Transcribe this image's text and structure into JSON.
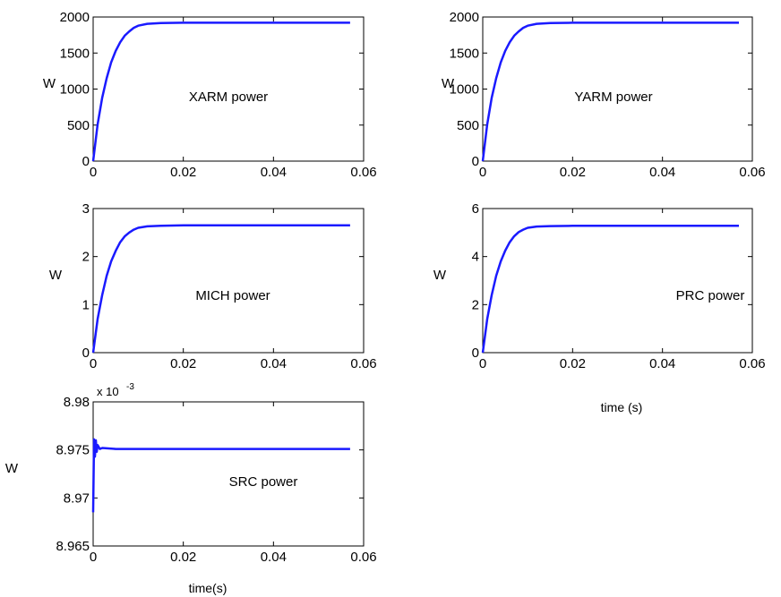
{
  "colors": {
    "series": "#1a1aff",
    "axes": "#000000",
    "background": "#ffffff"
  },
  "chart_data": [
    {
      "type": "line",
      "annotation": "XARM power",
      "ylabel": "W",
      "xlabel": "",
      "xlim": [
        0,
        0.06
      ],
      "ylim": [
        0,
        2000
      ],
      "xticks": [
        "0",
        "0.02",
        "0.04",
        "0.06"
      ],
      "yticks": [
        "0",
        "500",
        "1000",
        "1500",
        "2000"
      ],
      "exponent": "",
      "grid": false,
      "series": [
        {
          "x": [
            0,
            0.001,
            0.002,
            0.003,
            0.004,
            0.005,
            0.006,
            0.007,
            0.008,
            0.009,
            0.01,
            0.012,
            0.015,
            0.02,
            0.03,
            0.04,
            0.05,
            0.057
          ],
          "y": [
            0,
            510,
            880,
            1150,
            1370,
            1530,
            1650,
            1740,
            1800,
            1850,
            1880,
            1905,
            1915,
            1920,
            1920,
            1920,
            1920,
            1920
          ]
        }
      ]
    },
    {
      "type": "line",
      "annotation": "YARM power",
      "ylabel": "W",
      "xlabel": "",
      "xlim": [
        0,
        0.06
      ],
      "ylim": [
        0,
        2000
      ],
      "xticks": [
        "0",
        "0.02",
        "0.04",
        "0.06"
      ],
      "yticks": [
        "0",
        "500",
        "1000",
        "1500",
        "2000"
      ],
      "exponent": "",
      "grid": false,
      "series": [
        {
          "x": [
            0,
            0.001,
            0.002,
            0.003,
            0.004,
            0.005,
            0.006,
            0.007,
            0.008,
            0.009,
            0.01,
            0.012,
            0.015,
            0.02,
            0.03,
            0.04,
            0.05,
            0.057
          ],
          "y": [
            0,
            510,
            880,
            1150,
            1370,
            1530,
            1650,
            1740,
            1800,
            1850,
            1880,
            1905,
            1915,
            1920,
            1920,
            1920,
            1920,
            1920
          ]
        }
      ]
    },
    {
      "type": "line",
      "annotation": "MICH power",
      "ylabel": "W",
      "xlabel": "",
      "xlim": [
        0,
        0.06
      ],
      "ylim": [
        0,
        3
      ],
      "xticks": [
        "0",
        "0.02",
        "0.04",
        "0.06"
      ],
      "yticks": [
        "0",
        "1",
        "2",
        "3"
      ],
      "exponent": "",
      "grid": false,
      "series": [
        {
          "x": [
            0,
            0.001,
            0.002,
            0.003,
            0.004,
            0.005,
            0.006,
            0.007,
            0.008,
            0.009,
            0.01,
            0.012,
            0.015,
            0.02,
            0.03,
            0.04,
            0.05,
            0.057
          ],
          "y": [
            0,
            0.7,
            1.2,
            1.6,
            1.9,
            2.12,
            2.3,
            2.42,
            2.5,
            2.56,
            2.6,
            2.63,
            2.64,
            2.65,
            2.65,
            2.65,
            2.65,
            2.65
          ]
        }
      ]
    },
    {
      "type": "line",
      "annotation": "PRC power",
      "ylabel": "W",
      "xlabel": "time (s)",
      "xlim": [
        0,
        0.06
      ],
      "ylim": [
        0,
        6
      ],
      "xticks": [
        "0",
        "0.02",
        "0.04",
        "0.06"
      ],
      "yticks": [
        "0",
        "2",
        "4",
        "6"
      ],
      "exponent": "",
      "grid": false,
      "series": [
        {
          "x": [
            0,
            0.001,
            0.002,
            0.003,
            0.004,
            0.005,
            0.006,
            0.007,
            0.008,
            0.009,
            0.01,
            0.012,
            0.015,
            0.02,
            0.03,
            0.04,
            0.05,
            0.057
          ],
          "y": [
            0,
            1.4,
            2.4,
            3.2,
            3.8,
            4.25,
            4.6,
            4.85,
            5.02,
            5.12,
            5.2,
            5.25,
            5.27,
            5.28,
            5.28,
            5.28,
            5.28,
            5.28
          ]
        }
      ]
    },
    {
      "type": "line",
      "annotation": "SRC power",
      "ylabel": "W",
      "xlabel": "time(s)",
      "xlim": [
        0,
        0.06
      ],
      "ylim": [
        8.965,
        8.98
      ],
      "xticks": [
        "0",
        "0.02",
        "0.04",
        "0.06"
      ],
      "yticks": [
        "8.965",
        "8.97",
        "8.975",
        "8.98"
      ],
      "exponent": "x 10",
      "exponent_power": "-3",
      "grid": false,
      "series": [
        {
          "x": [
            0,
            0.0002,
            0.0004,
            0.0006,
            0.0008,
            0.001,
            0.0015,
            0.002,
            0.005,
            0.01,
            0.02,
            0.03,
            0.04,
            0.05,
            0.057
          ],
          "y": [
            8.9685,
            8.9761,
            8.9743,
            8.976,
            8.9748,
            8.9755,
            8.9751,
            8.9752,
            8.9751,
            8.9751,
            8.9751,
            8.9751,
            8.9751,
            8.9751,
            8.9751
          ]
        }
      ]
    }
  ]
}
